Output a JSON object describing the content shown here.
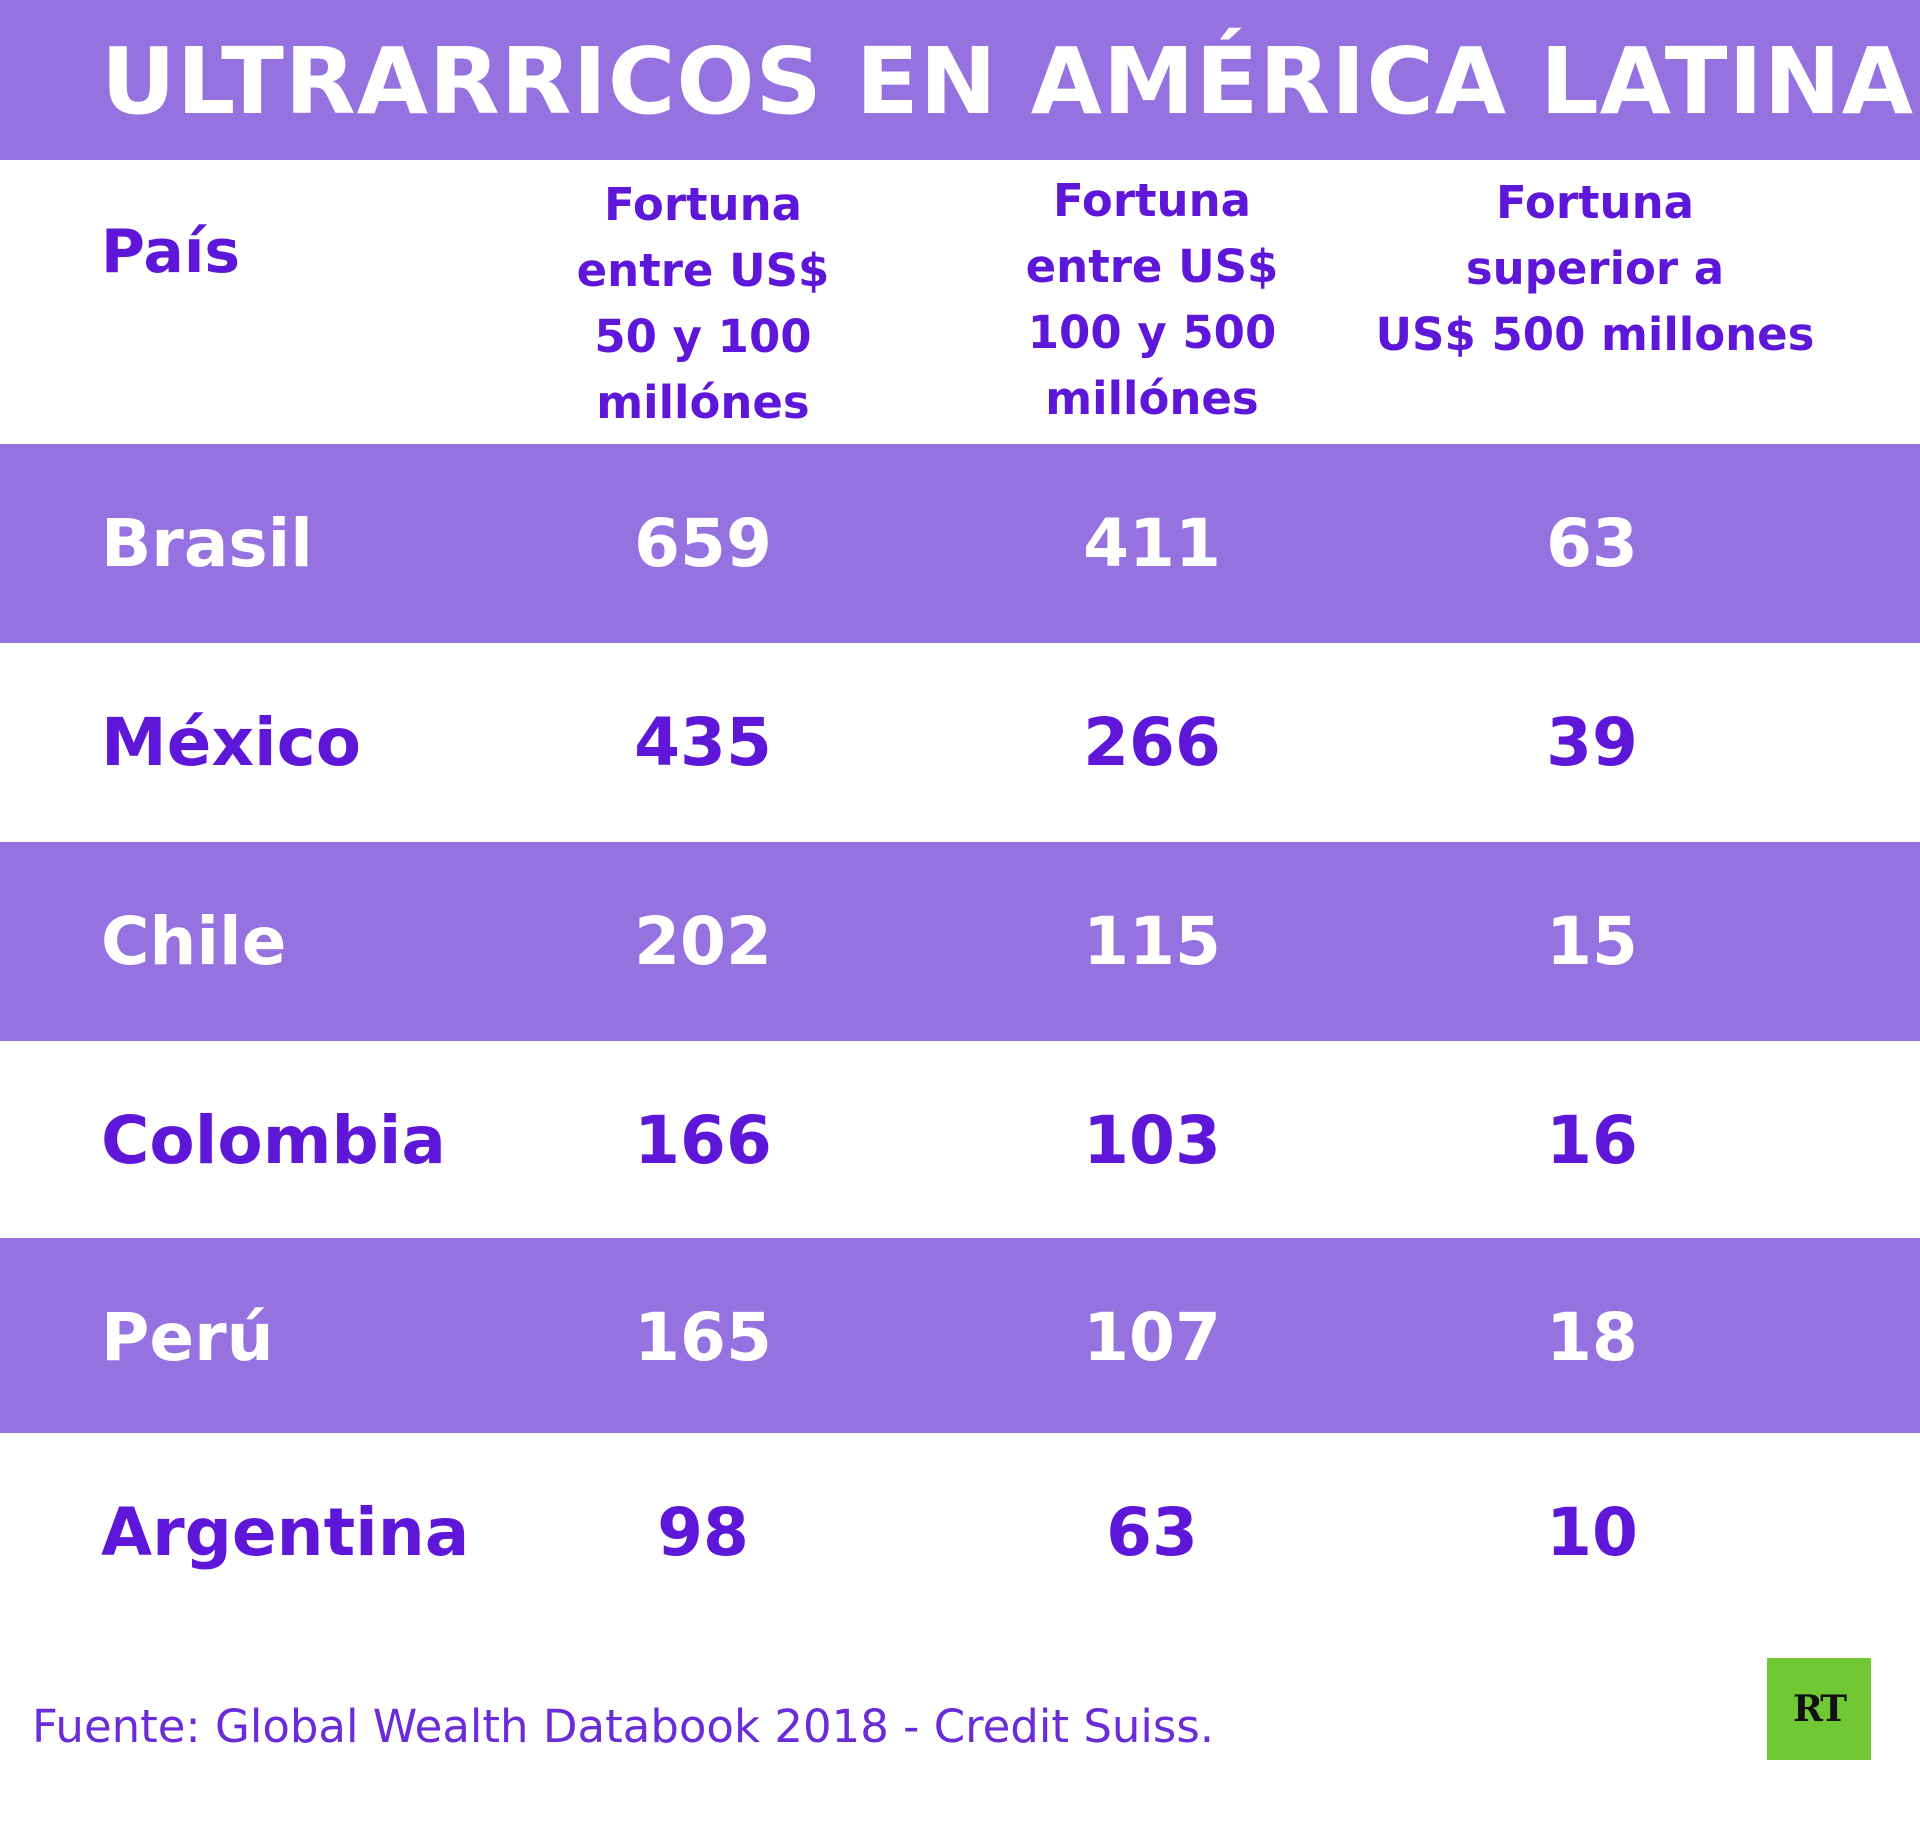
{
  "title": "ULTRARRICOS EN AMÉRICA LATINA",
  "colors": {
    "purple": "#9572e0",
    "text_purple": "#5e17d9",
    "logo_green": "#6fc834"
  },
  "chart_data": {
    "type": "table",
    "title": "ULTRARRICOS EN AMÉRICA LATINA",
    "columns": [
      "País",
      "Fortuna entre US$ 50 y 100 millónes",
      "Fortuna entre US$ 100 y 500 millónes",
      "Fortuna superior a US$ 500 millones"
    ],
    "column_lines": [
      [
        "País"
      ],
      [
        "Fortuna",
        "entre US$",
        "50 y 100",
        "millónes"
      ],
      [
        "Fortuna",
        "entre US$",
        "100 y 500",
        "millónes"
      ],
      [
        "Fortuna",
        "superior a",
        "US$ 500 millones"
      ]
    ],
    "rows": [
      {
        "country": "Brasil",
        "values": [
          659,
          411,
          63
        ]
      },
      {
        "country": "México",
        "values": [
          435,
          266,
          39
        ]
      },
      {
        "country": "Chile",
        "values": [
          202,
          115,
          15
        ]
      },
      {
        "country": "Colombia",
        "values": [
          166,
          103,
          16
        ]
      },
      {
        "country": "Perú",
        "values": [
          165,
          107,
          18
        ]
      },
      {
        "country": "Argentina",
        "values": [
          98,
          63,
          10
        ]
      }
    ],
    "source": "Fuente: Global Wealth Databook 2018 - Credit Suiss."
  },
  "logo": {
    "text": "RT"
  }
}
